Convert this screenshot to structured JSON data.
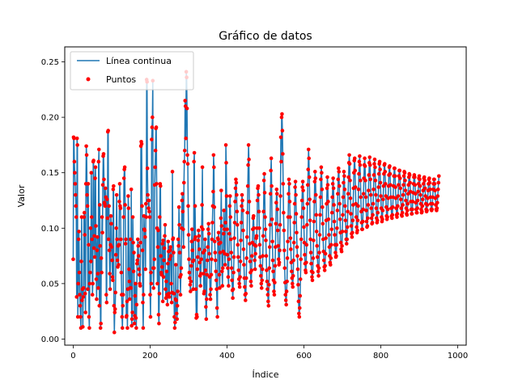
{
  "chart_data": {
    "type": "line",
    "title": "Gráfico de datos",
    "xlabel": "Índice",
    "ylabel": "Valor",
    "xlim": [
      -22,
      1022
    ],
    "ylim": [
      -0.0055,
      0.2635
    ],
    "x_ticks": [
      0,
      200,
      400,
      600,
      800,
      1000
    ],
    "y_ticks": [
      0.0,
      0.05,
      0.1,
      0.15,
      0.2,
      0.25
    ],
    "x_tick_labels": [
      "0",
      "200",
      "400",
      "600",
      "800",
      "1000"
    ],
    "y_tick_labels": [
      "0.00",
      "0.05",
      "0.10",
      "0.15",
      "0.20",
      "0.25"
    ],
    "legend": {
      "placement": "top-left",
      "entries": [
        "Línea continua",
        "Puntos"
      ]
    },
    "series": [
      {
        "name": "Línea continua",
        "kind": "line",
        "color": "#1f77b4"
      },
      {
        "name": "Puntos",
        "kind": "scatter",
        "color": "#ff0000"
      }
    ],
    "n_points": 1001,
    "x_start": 0,
    "x_step": 1,
    "values": [
      0.072,
      0.182,
      0.181,
      0.16,
      0.15,
      0.14,
      0.13,
      0.12,
      0.11,
      0.038,
      0.181,
      0.175,
      0.02,
      0.05,
      0.09,
      0.097,
      0.06,
      0.04,
      0.03,
      0.02,
      0.01,
      0.07,
      0.11,
      0.035,
      0.045,
      0.011,
      0.038,
      0.046,
      0.11,
      0.114,
      0.094,
      0.041,
      0.024,
      0.14,
      0.174,
      0.166,
      0.13,
      0.12,
      0.045,
      0.14,
      0.085,
      0.02,
      0.01,
      0.05,
      0.06,
      0.1,
      0.07,
      0.15,
      0.11,
      0.09,
      0.04,
      0.05,
      0.16,
      0.161,
      0.082,
      0.093,
      0.074,
      0.145,
      0.155,
      0.102,
      0.054,
      0.036,
      0.08,
      0.092,
      0.059,
      0.046,
      0.16,
      0.171,
      0.03,
      0.121,
      0.084,
      0.01,
      0.014,
      0.073,
      0.06,
      0.11,
      0.096,
      0.139,
      0.165,
      0.167,
      0.144,
      0.123,
      0.122,
      0.12,
      0.136,
      0.128,
      0.04,
      0.033,
      0.126,
      0.109,
      0.187,
      0.188,
      0.09,
      0.12,
      0.08,
      0.059,
      0.045,
      0.085,
      0.111,
      0.104,
      0.083,
      0.071,
      0.056,
      0.053,
      0.135,
      0.138,
      0.03,
      0.006,
      0.024,
      0.027,
      0.042,
      0.076,
      0.1,
      0.13,
      0.09,
      0.071,
      0.065,
      0.084,
      0.067,
      0.085,
      0.124,
      0.14,
      0.12,
      0.118,
      0.09,
      0.06,
      0.04,
      0.02,
      0.01,
      0.03,
      0.04,
      0.11,
      0.145,
      0.153,
      0.155,
      0.121,
      0.086,
      0.09,
      0.02,
      0.021,
      0.034,
      0.01,
      0.045,
      0.129,
      0.118,
      0.063,
      0.052,
      0.036,
      0.046,
      0.09,
      0.046,
      0.135,
      0.012,
      0.018,
      0.024,
      0.11,
      0.087,
      0.061,
      0.078,
      0.014,
      0.021,
      0.039,
      0.05,
      0.019,
      0.01,
      0.031,
      0.068,
      0.071,
      0.09,
      0.084,
      0.075,
      0.063,
      0.058,
      0.05,
      0.048,
      0.087,
      0.174,
      0.178,
      0.176,
      0.12,
      0.08,
      0.033,
      0.01,
      0.04,
      0.111,
      0.099,
      0.098,
      0.092,
      0.063,
      0.122,
      0.11,
      0.234,
      0.232,
      0.154,
      0.13,
      0.125,
      0.118,
      0.125,
      0.115,
      0.11,
      0.04,
      0.02,
      0.06,
      0.05,
      0.18,
      0.191,
      0.2,
      0.233,
      0.064,
      0.046,
      0.064,
      0.072,
      0.139,
      0.155,
      0.17,
      0.19,
      0.191,
      0.14,
      0.1,
      0.05,
      0.083,
      0.098,
      0.022,
      0.014,
      0.041,
      0.11,
      0.14,
      0.138,
      0.075,
      0.06,
      0.058,
      0.065,
      0.086,
      0.034,
      0.089,
      0.056,
      0.071,
      0.082,
      0.093,
      0.103,
      0.045,
      0.037,
      0.052,
      0.061,
      0.04,
      0.031,
      0.068,
      0.088,
      0.079,
      0.041,
      0.038,
      0.072,
      0.08,
      0.083,
      0.075,
      0.05,
      0.033,
      0.042,
      0.151,
      0.09,
      0.091,
      0.078,
      0.041,
      0.02,
      0.01,
      0.015,
      0.036,
      0.067,
      0.035,
      0.023,
      0.018,
      0.03,
      0.043,
      0.09,
      0.084,
      0.119,
      0.103,
      0.078,
      0.056,
      0.04,
      0.058,
      0.064,
      0.1,
      0.125,
      0.131,
      0.115,
      0.099,
      0.083,
      0.141,
      0.16,
      0.17,
      0.215,
      0.21,
      0.181,
      0.241,
      0.236,
      0.208,
      0.166,
      0.158,
      0.12,
      0.094,
      0.072,
      0.06,
      0.055,
      0.049,
      0.043,
      0.052,
      0.066,
      0.088,
      0.099,
      0.08,
      0.07,
      0.045,
      0.071,
      0.16,
      0.168,
      0.09,
      0.12,
      0.092,
      0.045,
      0.019,
      0.022,
      0.02,
      0.063,
      0.074,
      0.089,
      0.098,
      0.093,
      0.081,
      0.069,
      0.057,
      0.048,
      0.059,
      0.072,
      0.101,
      0.121,
      0.155,
      0.099,
      0.078,
      0.059,
      0.041,
      0.043,
      0.08,
      0.09,
      0.062,
      0.029,
      0.018,
      0.036,
      0.058,
      0.071,
      0.083,
      0.099,
      0.104,
      0.095,
      0.077,
      0.056,
      0.04,
      0.036,
      0.045,
      0.058,
      0.072,
      0.09,
      0.105,
      0.12,
      0.133,
      0.166,
      0.155,
      0.119,
      0.088,
      0.078,
      0.071,
      0.061,
      0.053,
      0.045,
      0.028,
      0.02,
      0.091,
      0.09,
      0.096,
      0.086,
      0.058,
      0.046,
      0.078,
      0.087,
      0.109,
      0.134,
      0.102,
      0.061,
      0.048,
      0.064,
      0.079,
      0.095,
      0.116,
      0.099,
      0.077,
      0.067,
      0.105,
      0.175,
      0.159,
      0.129,
      0.099,
      0.076,
      0.064,
      0.056,
      0.048,
      0.072,
      0.095,
      0.12,
      0.129,
      0.11,
      0.09,
      0.078,
      0.064,
      0.053,
      0.044,
      0.037,
      0.045,
      0.06,
      0.074,
      0.091,
      0.105,
      0.124,
      0.136,
      0.144,
      0.141,
      0.13,
      0.115,
      0.103,
      0.085,
      0.074,
      0.062,
      0.054,
      0.05,
      0.047,
      0.056,
      0.07,
      0.089,
      0.105,
      0.12,
      0.13,
      0.125,
      0.116,
      0.098,
      0.081,
      0.067,
      0.055,
      0.047,
      0.04,
      0.035,
      0.041,
      0.055,
      0.073,
      0.092,
      0.114,
      0.138,
      0.157,
      0.175,
      0.162,
      0.124,
      0.086,
      0.07,
      0.06,
      0.052,
      0.048,
      0.062,
      0.075,
      0.087,
      0.099,
      0.109,
      0.111,
      0.1,
      0.085,
      0.071,
      0.063,
      0.077,
      0.084,
      0.091,
      0.093,
      0.1,
      0.125,
      0.136,
      0.138,
      0.13,
      0.115,
      0.1,
      0.085,
      0.074,
      0.066,
      0.057,
      0.05,
      0.046,
      0.053,
      0.063,
      0.075,
      0.093,
      0.115,
      0.143,
      0.149,
      0.132,
      0.11,
      0.099,
      0.089,
      0.075,
      0.062,
      0.052,
      0.045,
      0.04,
      0.034,
      0.03,
      0.049,
      0.064,
      0.083,
      0.103,
      0.131,
      0.152,
      0.163,
      0.138,
      0.108,
      0.088,
      0.071,
      0.061,
      0.053,
      0.043,
      0.04,
      0.051,
      0.066,
      0.083,
      0.104,
      0.123,
      0.135,
      0.131,
      0.117,
      0.098,
      0.084,
      0.072,
      0.067,
      0.069,
      0.08,
      0.103,
      0.129,
      0.182,
      0.16,
      0.2,
      0.203,
      0.188,
      0.167,
      0.14,
      0.114,
      0.098,
      0.08,
      0.064,
      0.051,
      0.04,
      0.035,
      0.031,
      0.043,
      0.052,
      0.073,
      0.088,
      0.11,
      0.131,
      0.144,
      0.14,
      0.124,
      0.11,
      0.091,
      0.081,
      0.069,
      0.061,
      0.055,
      0.05,
      0.047,
      0.057,
      0.071,
      0.087,
      0.105,
      0.122,
      0.137,
      0.142,
      0.13,
      0.113,
      0.096,
      0.083,
      0.075,
      0.063,
      0.049,
      0.034,
      0.023,
      0.02,
      0.028,
      0.039,
      0.054,
      0.072,
      0.09,
      0.11,
      0.125,
      0.137,
      0.142,
      0.134,
      0.118,
      0.101,
      0.087,
      0.076,
      0.068,
      0.062,
      0.06,
      0.069,
      0.085,
      0.103,
      0.122,
      0.139,
      0.153,
      0.171,
      0.163,
      0.146,
      0.126,
      0.107,
      0.09,
      0.078,
      0.068,
      0.061,
      0.056,
      0.053,
      0.06,
      0.073,
      0.089,
      0.106,
      0.124,
      0.142,
      0.151,
      0.145,
      0.13,
      0.112,
      0.097,
      0.084,
      0.074,
      0.066,
      0.061,
      0.057,
      0.064,
      0.078,
      0.094,
      0.112,
      0.128,
      0.144,
      0.155,
      0.15,
      0.135,
      0.119,
      0.104,
      0.09,
      0.079,
      0.071,
      0.065,
      0.062,
      0.066,
      0.077,
      0.091,
      0.107,
      0.122,
      0.136,
      0.146,
      0.139,
      0.124,
      0.108,
      0.094,
      0.083,
      0.075,
      0.069,
      0.067,
      0.073,
      0.085,
      0.099,
      0.114,
      0.128,
      0.14,
      0.145,
      0.136,
      0.121,
      0.106,
      0.094,
      0.085,
      0.078,
      0.074,
      0.075,
      0.085,
      0.1,
      0.116,
      0.131,
      0.144,
      0.154,
      0.151,
      0.138,
      0.122,
      0.108,
      0.096,
      0.087,
      0.081,
      0.079,
      0.084,
      0.097,
      0.112,
      0.128,
      0.141,
      0.151,
      0.147,
      0.135,
      0.12,
      0.107,
      0.097,
      0.09,
      0.086,
      0.09,
      0.101,
      0.115,
      0.131,
      0.146,
      0.159,
      0.166,
      0.158,
      0.143,
      0.127,
      0.113,
      0.102,
      0.095,
      0.092,
      0.096,
      0.107,
      0.121,
      0.136,
      0.15,
      0.161,
      0.163,
      0.152,
      0.137,
      0.122,
      0.11,
      0.101,
      0.096,
      0.098,
      0.107,
      0.12,
      0.135,
      0.149,
      0.16,
      0.165,
      0.157,
      0.143,
      0.128,
      0.115,
      0.105,
      0.099,
      0.099,
      0.106,
      0.117,
      0.131,
      0.145,
      0.157,
      0.163,
      0.156,
      0.143,
      0.128,
      0.116,
      0.106,
      0.101,
      0.102,
      0.109,
      0.121,
      0.134,
      0.148,
      0.159,
      0.164,
      0.157,
      0.144,
      0.13,
      0.118,
      0.109,
      0.104,
      0.105,
      0.112,
      0.122,
      0.135,
      0.148,
      0.158,
      0.162,
      0.155,
      0.143,
      0.13,
      0.118,
      0.109,
      0.105,
      0.107,
      0.114,
      0.125,
      0.137,
      0.149,
      0.158,
      0.16,
      0.153,
      0.141,
      0.129,
      0.118,
      0.11,
      0.106,
      0.108,
      0.116,
      0.126,
      0.138,
      0.149,
      0.157,
      0.158,
      0.151,
      0.14,
      0.129,
      0.119,
      0.111,
      0.108,
      0.11,
      0.117,
      0.127,
      0.138,
      0.148,
      0.155,
      0.156,
      0.149,
      0.139,
      0.128,
      0.118,
      0.111,
      0.109,
      0.112,
      0.119,
      0.128,
      0.138,
      0.147,
      0.154,
      0.154,
      0.147,
      0.137,
      0.127,
      0.118,
      0.112,
      0.11,
      0.113,
      0.12,
      0.129,
      0.139,
      0.147,
      0.152,
      0.152,
      0.145,
      0.136,
      0.126,
      0.118,
      0.112,
      0.111,
      0.114,
      0.121,
      0.13,
      0.139,
      0.147,
      0.151,
      0.15,
      0.143,
      0.134,
      0.125,
      0.118,
      0.113,
      0.112,
      0.116,
      0.122,
      0.131,
      0.139,
      0.146,
      0.149,
      0.148,
      0.141,
      0.133,
      0.124,
      0.117,
      0.113,
      0.113,
      0.117,
      0.124,
      0.132,
      0.14,
      0.146,
      0.148,
      0.146,
      0.139,
      0.131,
      0.123,
      0.117,
      0.114,
      0.114,
      0.118,
      0.125,
      0.133,
      0.14,
      0.145,
      0.147,
      0.144,
      0.138,
      0.13,
      0.122,
      0.117,
      0.114,
      0.115,
      0.12,
      0.126,
      0.134,
      0.14,
      0.145,
      0.146,
      0.143,
      0.136,
      0.129,
      0.122,
      0.117,
      0.115,
      0.116,
      0.121,
      0.127,
      0.134,
      0.14,
      0.144,
      0.145,
      0.141,
      0.135,
      0.128,
      0.122,
      0.117,
      0.116,
      0.117,
      0.122,
      0.128,
      0.135,
      0.14,
      0.144,
      0.144,
      0.14,
      0.134,
      0.127,
      0.121,
      0.117,
      0.116,
      0.118,
      0.123,
      0.129,
      0.135,
      0.141,
      0.147
    ]
  }
}
